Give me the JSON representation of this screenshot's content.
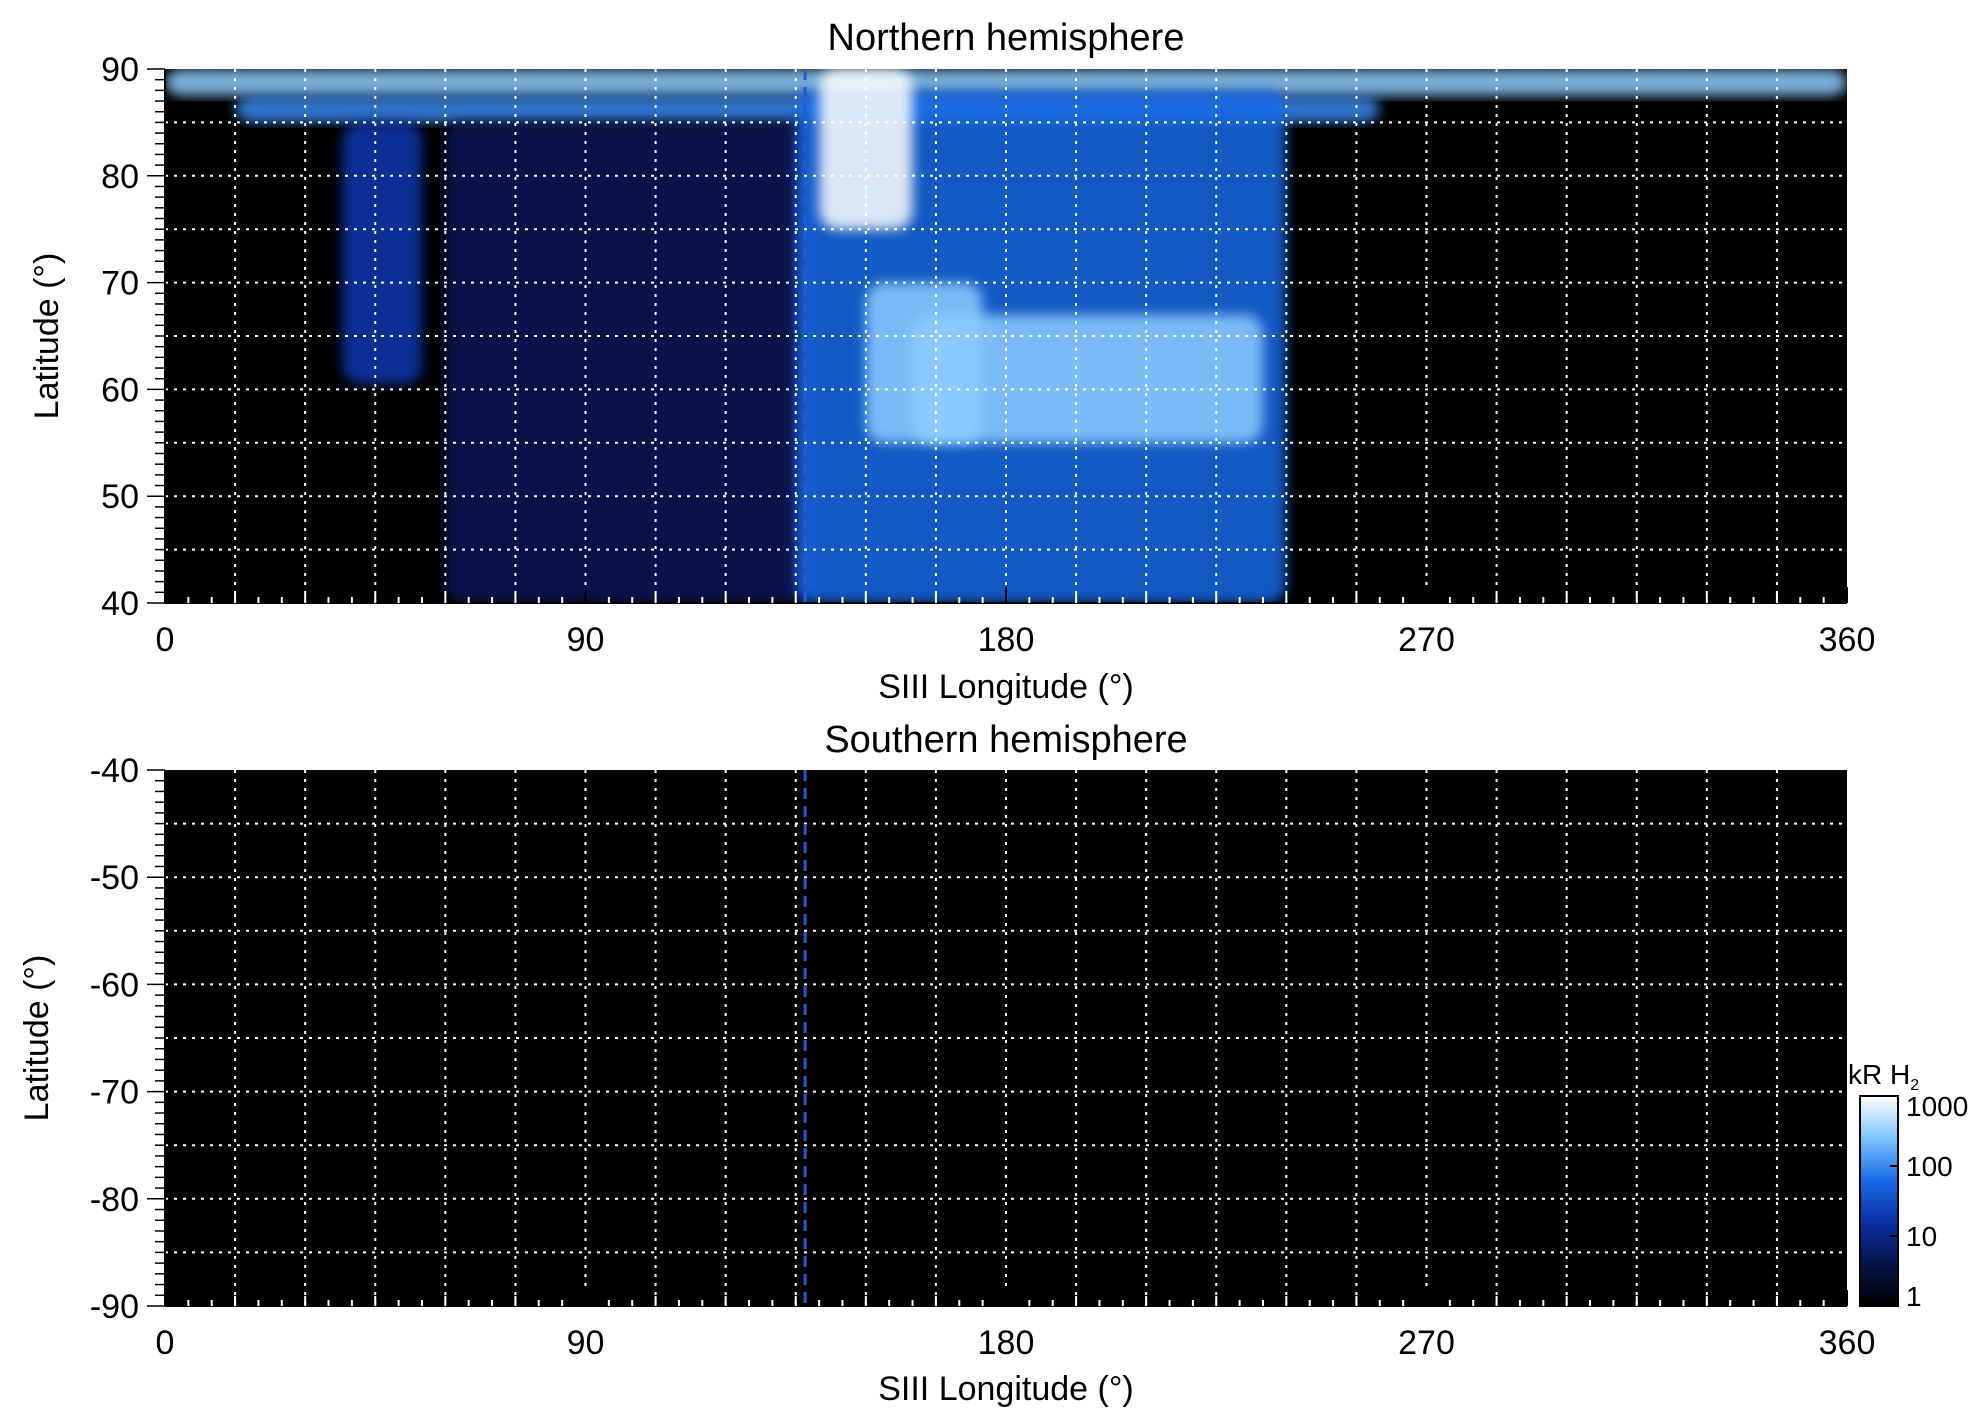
{
  "chart_data": [
    {
      "type": "heatmap",
      "title": "Northern hemisphere",
      "xlabel": "SIII Longitude (°)",
      "ylabel": "Latitude (°)",
      "xlim": [
        0,
        360
      ],
      "ylim": [
        40,
        90
      ],
      "x_ticks": [
        "0",
        "90",
        "180",
        "270",
        "360"
      ],
      "y_ticks": [
        "90",
        "80",
        "70",
        "60",
        "50",
        "40"
      ],
      "grid": true,
      "grid_x_step": 15,
      "grid_y_step": 5,
      "marker_longitude": 137,
      "features": [
        {
          "lon_min": 0,
          "lon_max": 360,
          "lat_min": 87.5,
          "lat_max": 90,
          "level_kR": 300
        },
        {
          "lon_min": 15,
          "lon_max": 260,
          "lat_min": 85,
          "lat_max": 87.5,
          "level_kR": 100
        },
        {
          "lon_min": 38,
          "lon_max": 55,
          "lat_min": 60.5,
          "lat_max": 85,
          "level_kR": 20
        },
        {
          "lon_min": 60,
          "lon_max": 140,
          "lat_min": 40,
          "lat_max": 85,
          "level_kR": 5
        },
        {
          "lon_min": 135,
          "lon_max": 240,
          "lat_min": 40,
          "lat_max": 88,
          "level_kR": 60
        },
        {
          "lon_min": 140,
          "lon_max": 160,
          "lat_min": 75,
          "lat_max": 90,
          "level_kR": 1000
        },
        {
          "lon_min": 150,
          "lon_max": 175,
          "lat_min": 55,
          "lat_max": 70,
          "level_kR": 300
        },
        {
          "lon_min": 160,
          "lon_max": 235,
          "lat_min": 55,
          "lat_max": 67,
          "level_kR": 300
        }
      ]
    },
    {
      "type": "heatmap",
      "title": "Southern hemisphere",
      "xlabel": "SIII Longitude (°)",
      "ylabel": "Latitude (°)",
      "xlim": [
        0,
        360
      ],
      "ylim": [
        -90,
        -40
      ],
      "x_ticks": [
        "0",
        "90",
        "180",
        "270",
        "360"
      ],
      "y_ticks": [
        "-40",
        "-50",
        "-60",
        "-70",
        "-80",
        "-90"
      ],
      "grid": true,
      "grid_x_step": 15,
      "grid_y_step": 5,
      "marker_longitude": 137,
      "features": []
    }
  ],
  "colorbar": {
    "label": "kR H",
    "label_subscript": "2",
    "scale": "log",
    "range": [
      1,
      1000
    ],
    "ticks": [
      "1000",
      "100",
      "10",
      "1"
    ],
    "colors": [
      "#000000",
      "#07144a",
      "#0a2fa6",
      "#1a6be8",
      "#7cc4ff",
      "#ffffff"
    ]
  }
}
